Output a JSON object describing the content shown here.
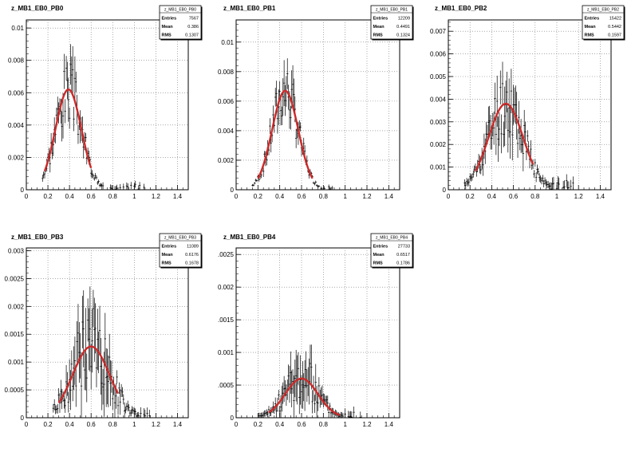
{
  "chart_data": [
    {
      "type": "scatter",
      "title": "z_MB1_EB0_PB0",
      "xlim": [
        0,
        1.5
      ],
      "ylim": [
        0,
        0.0105
      ],
      "xticks": [
        "0",
        "0.2",
        "0.4",
        "0.6",
        "0.8",
        "1",
        "1.2",
        "1.4"
      ],
      "yticks": [
        "0.002",
        "0.004",
        "0.006",
        "0.008",
        "0.01"
      ],
      "grid": true,
      "stats": {
        "name": "z_MB1_EB0_PB0",
        "entries": "7567",
        "mean": "0.386",
        "rms": "0.1307"
      },
      "fit": {
        "amplitude": 0.0062,
        "mean": 0.39,
        "sigma": 0.12,
        "xrange": [
          0.17,
          0.6
        ],
        "color": "#cc2a2a"
      },
      "data_xrange": [
        0.15,
        1.1
      ],
      "pattern": {
        "noise": 0.3,
        "err": 0.16,
        "tail": 0.0003,
        "seed": 3
      }
    },
    {
      "type": "scatter",
      "title": "z_MB1_EB0_PB1",
      "xlim": [
        0,
        1.5
      ],
      "ylim": [
        0,
        0.0115
      ],
      "xticks": [
        "0",
        "0.2",
        "0.4",
        "0.6",
        "0.8",
        "1",
        "1.2",
        "1.4"
      ],
      "yticks": [
        "0.002",
        "0.004",
        "0.006",
        "0.008",
        "0.01"
      ],
      "grid": true,
      "stats": {
        "name": "z_MB1_EB0_PB1",
        "entries": "12209",
        "mean": "0.4491",
        "rms": "0.1324"
      },
      "fit": {
        "amplitude": 0.0067,
        "mean": 0.45,
        "sigma": 0.12,
        "xrange": [
          0.2,
          0.7
        ],
        "color": "#cc2a2a"
      },
      "data_xrange": [
        0.15,
        0.9
      ],
      "pattern": {
        "noise": 0.28,
        "err": 0.15,
        "tail": 0.0002,
        "seed": 7
      }
    },
    {
      "type": "scatter",
      "title": "z_MB1_EB0_PB2",
      "xlim": [
        0,
        1.5
      ],
      "ylim": [
        0,
        0.0075
      ],
      "xticks": [
        "0",
        "0.2",
        "0.4",
        "0.6",
        "0.8",
        "1",
        "1.2",
        "1.4"
      ],
      "yticks": [
        "0.001",
        "0.002",
        "0.003",
        "0.004",
        "0.005",
        "0.006",
        "0.007"
      ],
      "grid": true,
      "stats": {
        "name": "z_MB1_EB0_PB2",
        "entries": "15422",
        "mean": "0.5442",
        "rms": "0.1597"
      },
      "fit": {
        "amplitude": 0.0038,
        "mean": 0.53,
        "sigma": 0.16,
        "xrange": [
          0.25,
          0.78
        ],
        "color": "#cc2a2a"
      },
      "data_xrange": [
        0.15,
        1.2
      ],
      "pattern": {
        "noise": 0.38,
        "err": 0.22,
        "tail": 0.0004,
        "seed": 11
      }
    },
    {
      "type": "scatter",
      "title": "z_MB1_EB0_PB3",
      "xlim": [
        0,
        1.5
      ],
      "ylim": [
        0,
        0.00305
      ],
      "xticks": [
        "0",
        "0.2",
        "0.4",
        "0.6",
        "0.8",
        "1",
        "1.2",
        "1.4"
      ],
      "yticks": [
        "0.0005",
        "0.001",
        "0.0015",
        "0.002",
        "0.0025",
        "0.003"
      ],
      "ytick_values": [
        0.0005,
        0.001,
        0.0015,
        0.002,
        0.0025,
        0.003
      ],
      "grid": true,
      "stats": {
        "name": "z_MB1_EB0_PB3",
        "entries": "11089",
        "mean": "0.6176",
        "rms": "0.1678"
      },
      "fit": {
        "amplitude": 0.00128,
        "mean": 0.6,
        "sigma": 0.17,
        "xrange": [
          0.3,
          0.85
        ],
        "color": "#cc2a2a"
      },
      "data_xrange": [
        0.25,
        1.15
      ],
      "pattern": {
        "noise": 0.55,
        "err": 0.4,
        "tail": 0.00015,
        "seed": 19
      }
    },
    {
      "type": "scatter",
      "title": "z_MB1_EB0_PB4",
      "xlim": [
        0,
        1.5
      ],
      "ylim": [
        0,
        0.0026
      ],
      "xticks": [
        "0",
        "0.2",
        "0.4",
        "0.6",
        "0.8",
        "1",
        "1.2",
        "1.4"
      ],
      "yticks": [
        ".0005",
        "0.001",
        ".0015",
        "0.002",
        ".0025"
      ],
      "ytick_values": [
        0.0005,
        0.001,
        0.0015,
        0.002,
        0.0025
      ],
      "grid": true,
      "stats": {
        "name": "z_MB1_EB0_PB4",
        "entries": "27733",
        "mean": "0.6517",
        "rms": "0.1786"
      },
      "fit": {
        "amplitude": 0.0006,
        "mean": 0.6,
        "sigma": 0.15,
        "xrange": [
          0.3,
          0.95
        ],
        "color": "#cc2a2a"
      },
      "data_xrange": [
        0.2,
        1.15
      ],
      "pattern": {
        "noise": 0.6,
        "err": 0.45,
        "tail": 0.00012,
        "seed": 23
      }
    }
  ]
}
